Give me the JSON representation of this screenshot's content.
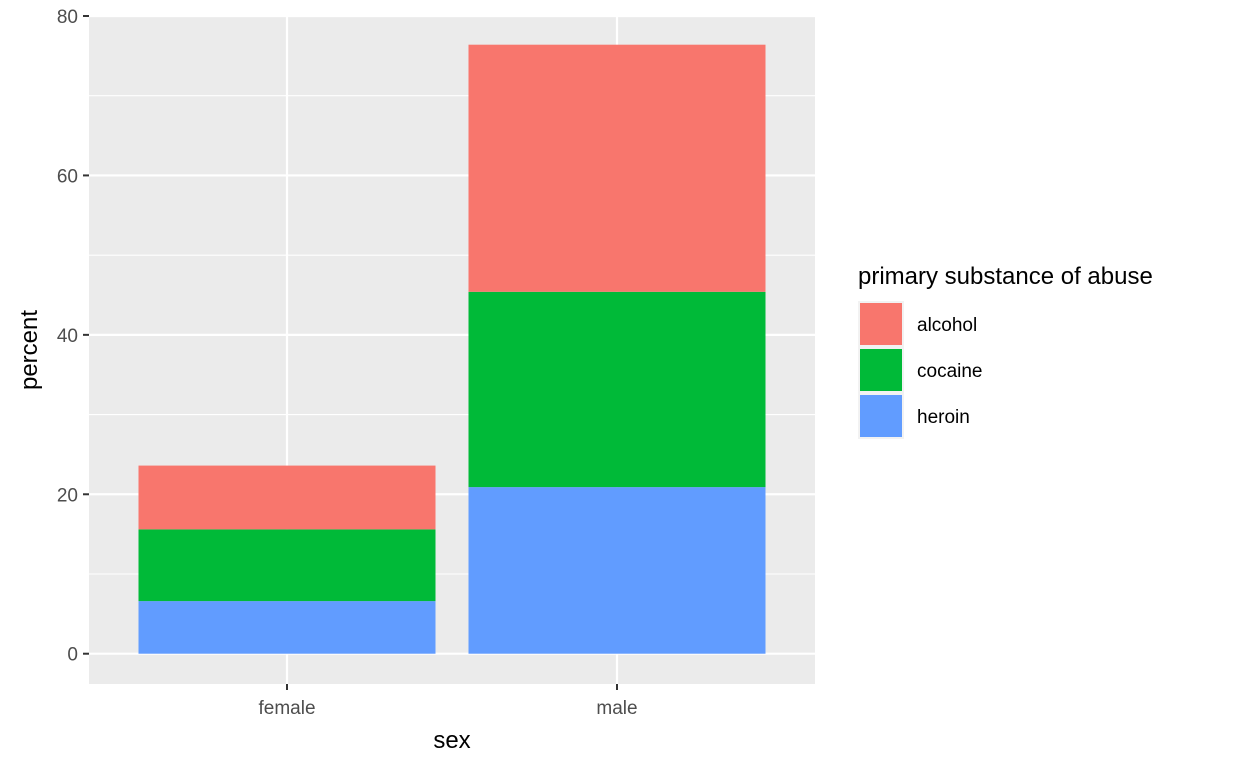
{
  "chart_data": {
    "type": "bar",
    "stacked": true,
    "categories": [
      "female",
      "male"
    ],
    "series": [
      {
        "name": "alcohol",
        "color": "#F8766D",
        "values": [
          8.0,
          31.0
        ]
      },
      {
        "name": "cocaine",
        "color": "#00BA38",
        "values": [
          9.0,
          24.5
        ]
      },
      {
        "name": "heroin",
        "color": "#619CFF",
        "values": [
          6.6,
          20.9
        ]
      }
    ],
    "stack_order_bottom_to_top": [
      "heroin",
      "cocaine",
      "alcohol"
    ],
    "xlabel": "sex",
    "ylabel": "percent",
    "ylim": [
      -3.8,
      80
    ],
    "yticks": [
      0,
      20,
      40,
      60,
      80
    ],
    "ytick_labels": [
      "0",
      "20",
      "40",
      "60",
      "80"
    ],
    "grid": true,
    "legend": {
      "title": "primary substance of abuse",
      "placement": "right",
      "entries": [
        "alcohol",
        "cocaine",
        "heroin"
      ]
    },
    "panel_background": "#EBEBEB",
    "grid_color": "#FFFFFF"
  }
}
